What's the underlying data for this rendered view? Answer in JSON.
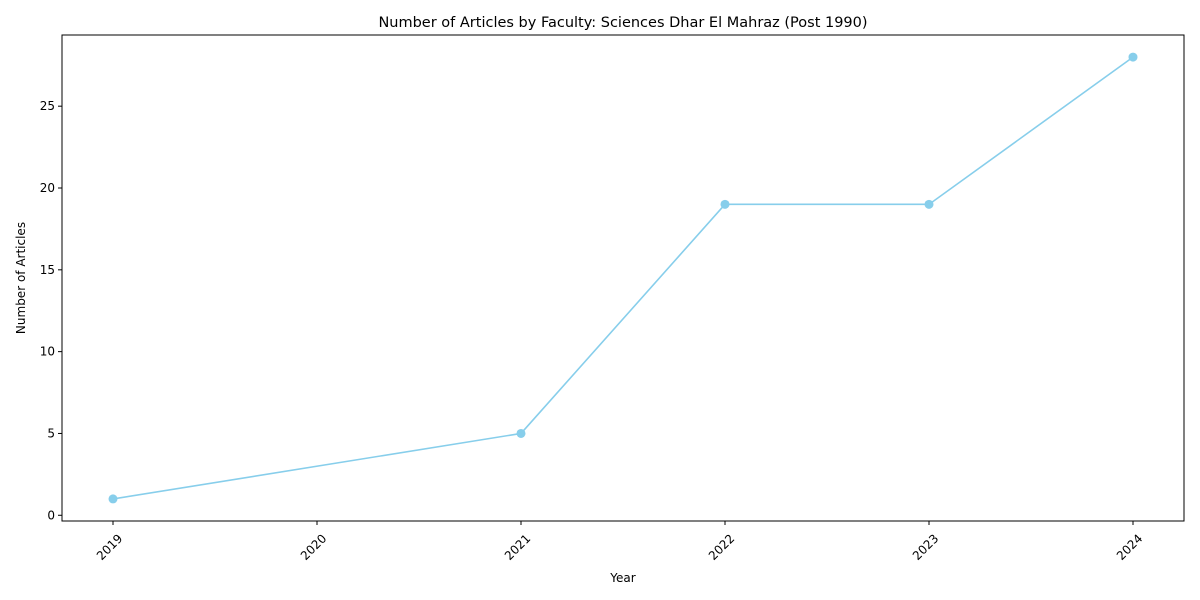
{
  "chart_data": {
    "type": "line",
    "title": "Number of Articles by Faculty: Sciences Dhar El Mahraz (Post 1990)",
    "xlabel": "Year",
    "ylabel": "Number of Articles",
    "x": [
      2019,
      2021,
      2022,
      2023,
      2024
    ],
    "series": [
      {
        "values": [
          1,
          5,
          19,
          19,
          28
        ],
        "color": "#87ceeb"
      }
    ],
    "x_ticks": [
      "2019",
      "2020",
      "2021",
      "2022",
      "2023",
      "2024"
    ],
    "y_ticks": [
      "0",
      "5",
      "10",
      "15",
      "20",
      "25"
    ],
    "xlim": [
      2018.75,
      2024.25
    ],
    "ylim": [
      -0.35,
      29.35
    ],
    "grid": false,
    "marker": "circle"
  }
}
